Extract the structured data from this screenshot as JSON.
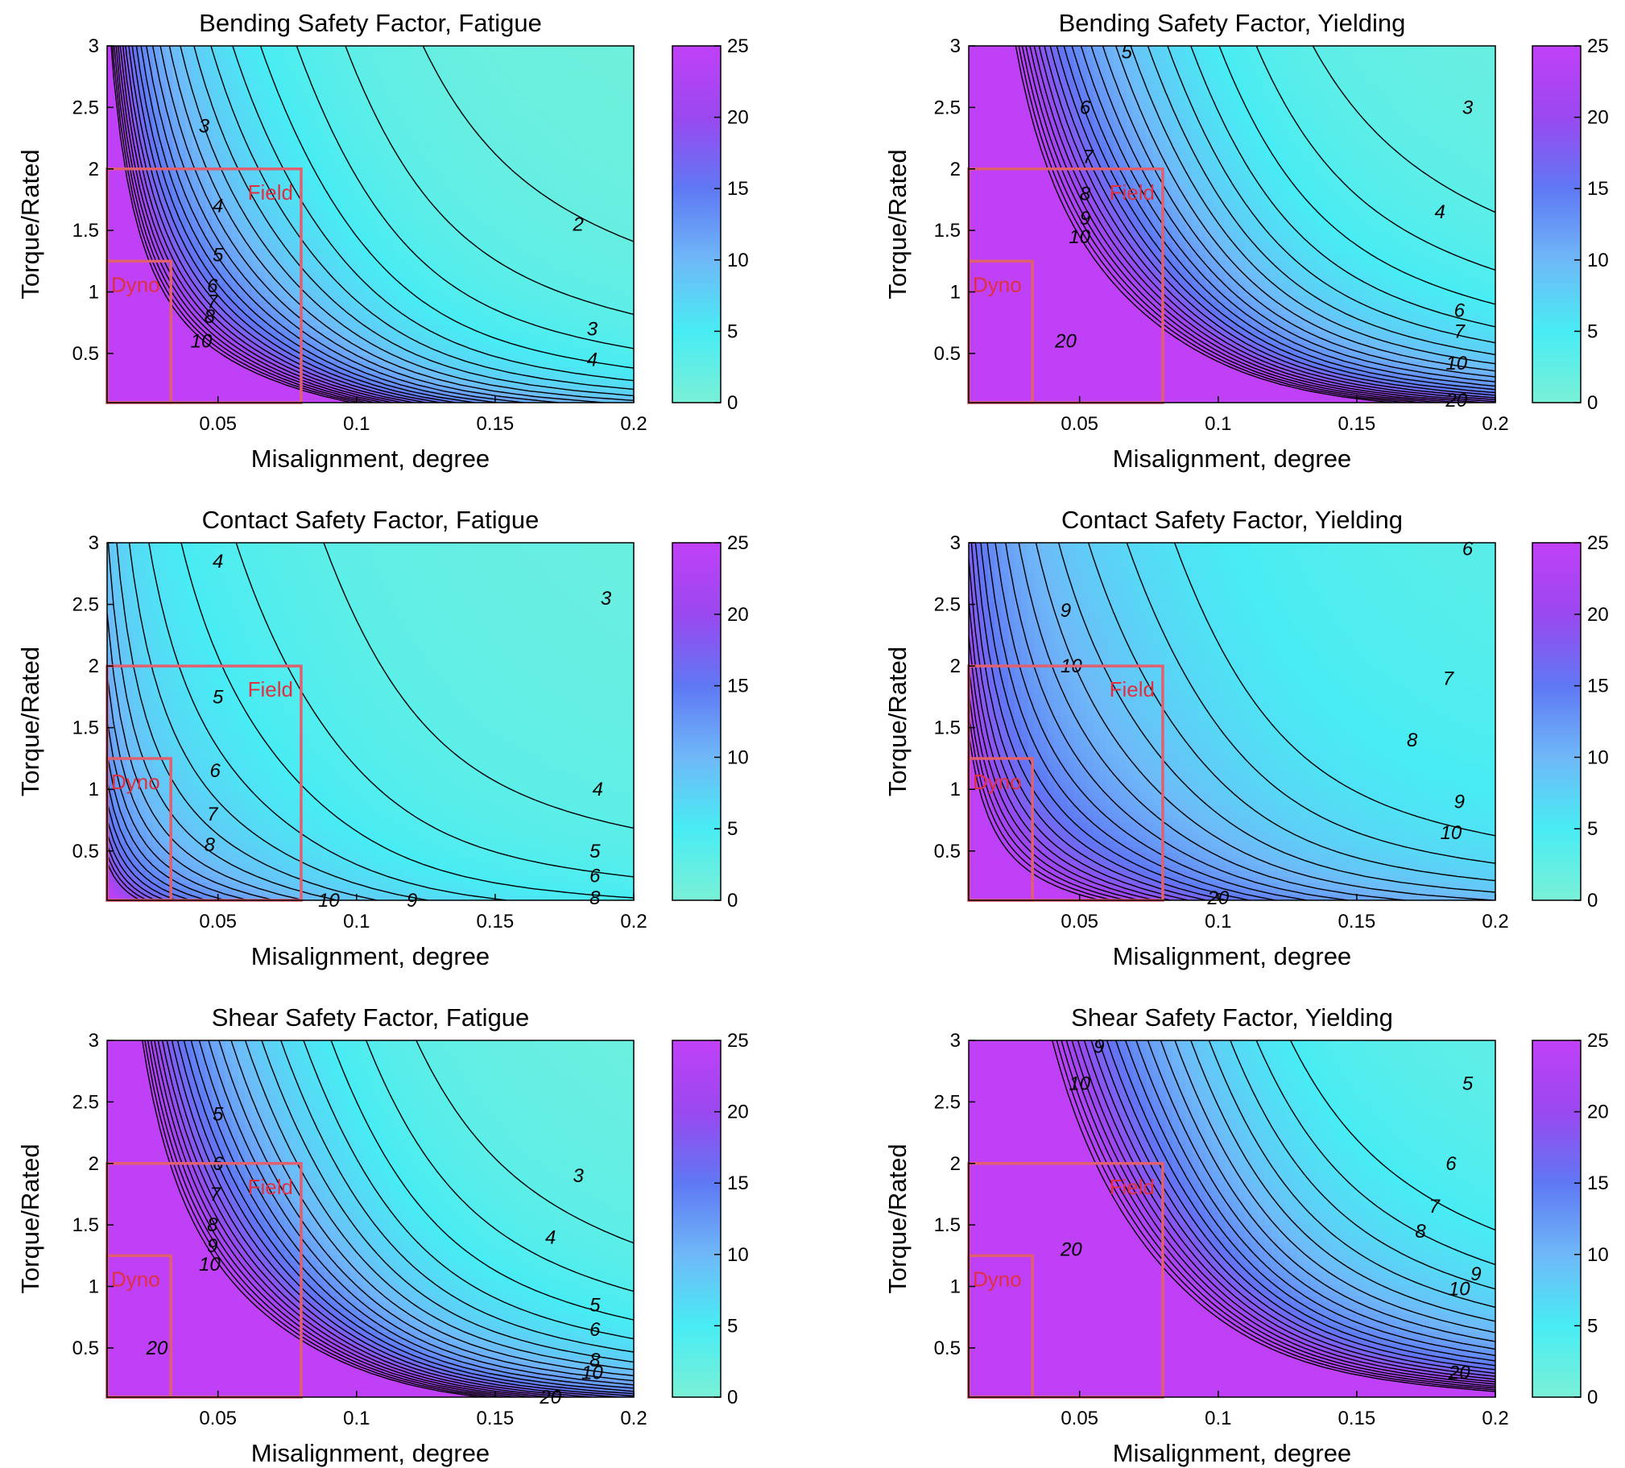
{
  "figure": {
    "colors": {
      "colormap": [
        "#7af0d6",
        "#48ecf4",
        "#6fb8f8",
        "#5f78f4",
        "#9a48f0",
        "#c040f8"
      ],
      "contour_line": "#000000",
      "region_box": "#e06070",
      "region_label": "#e03040",
      "background": "#ffffff"
    }
  },
  "chart_data": [
    {
      "type": "contour",
      "title": "Bending Safety Factor, Fatigue",
      "xlabel": "Misalignment, degree",
      "ylabel": "Torque/Rated",
      "xlim": [
        0.01,
        0.2
      ],
      "ylim": [
        0.1,
        3
      ],
      "xticks": [
        "0.05",
        "0.1",
        "0.15",
        "0.2"
      ],
      "yticks": [
        "0.5",
        "1",
        "1.5",
        "2",
        "2.5",
        "3"
      ],
      "colorbar": {
        "min": 0,
        "max": 25,
        "ticks": [
          "0",
          "5",
          "10",
          "15",
          "20",
          "25"
        ]
      },
      "contour_levels": [
        2,
        3,
        4,
        5,
        6,
        7,
        8,
        9,
        10,
        11,
        12,
        13,
        14,
        15,
        16,
        17,
        18,
        19,
        20,
        21,
        22,
        23,
        24,
        25
      ],
      "contour_labels": [
        {
          "text": "2",
          "x": 0.18,
          "y": 1.55
        },
        {
          "text": "3",
          "x": 0.045,
          "y": 2.35
        },
        {
          "text": "3",
          "x": 0.185,
          "y": 0.7
        },
        {
          "text": "4",
          "x": 0.05,
          "y": 1.7
        },
        {
          "text": "4",
          "x": 0.185,
          "y": 0.45
        },
        {
          "text": "5",
          "x": 0.05,
          "y": 1.3
        },
        {
          "text": "6",
          "x": 0.048,
          "y": 1.05
        },
        {
          "text": "7",
          "x": 0.048,
          "y": 0.92
        },
        {
          "text": "8",
          "x": 0.047,
          "y": 0.8
        },
        {
          "text": "10",
          "x": 0.044,
          "y": 0.6
        }
      ],
      "regions": [
        {
          "label": "Field",
          "x": [
            0.01,
            0.08
          ],
          "y": [
            0.1,
            2.0
          ]
        },
        {
          "label": "Dyno",
          "x": [
            0.01,
            0.033
          ],
          "y": [
            0.1,
            1.25
          ]
        }
      ],
      "model": {
        "base": 2.0,
        "exponent": 0.85
      }
    },
    {
      "type": "contour",
      "title": "Bending Safety Factor, Yielding",
      "xlabel": "Misalignment, degree",
      "ylabel": "Torque/Rated",
      "xlim": [
        0.01,
        0.2
      ],
      "ylim": [
        0.1,
        3
      ],
      "xticks": [
        "0.05",
        "0.1",
        "0.15",
        "0.2"
      ],
      "yticks": [
        "0.5",
        "1",
        "1.5",
        "2",
        "2.5",
        "3"
      ],
      "colorbar": {
        "min": 0,
        "max": 25,
        "ticks": [
          "0",
          "5",
          "10",
          "15",
          "20",
          "25"
        ]
      },
      "contour_levels": [
        3,
        4,
        5,
        6,
        7,
        8,
        9,
        10,
        11,
        12,
        13,
        14,
        15,
        16,
        17,
        18,
        19,
        20,
        21,
        22,
        23,
        24,
        25
      ],
      "contour_labels": [
        {
          "text": "3",
          "x": 0.19,
          "y": 2.5
        },
        {
          "text": "4",
          "x": 0.18,
          "y": 1.65
        },
        {
          "text": "5",
          "x": 0.067,
          "y": 2.95
        },
        {
          "text": "6",
          "x": 0.052,
          "y": 2.5
        },
        {
          "text": "6",
          "x": 0.187,
          "y": 0.85
        },
        {
          "text": "7",
          "x": 0.053,
          "y": 2.1
        },
        {
          "text": "7",
          "x": 0.187,
          "y": 0.68
        },
        {
          "text": "8",
          "x": 0.052,
          "y": 1.8
        },
        {
          "text": "9",
          "x": 0.052,
          "y": 1.6
        },
        {
          "text": "10",
          "x": 0.05,
          "y": 1.45
        },
        {
          "text": "10",
          "x": 0.186,
          "y": 0.42
        },
        {
          "text": "20",
          "x": 0.045,
          "y": 0.6
        },
        {
          "text": "20",
          "x": 0.186,
          "y": 0.12
        }
      ],
      "regions": [
        {
          "label": "Field",
          "x": [
            0.01,
            0.08
          ],
          "y": [
            0.1,
            2.0
          ]
        },
        {
          "label": "Dyno",
          "x": [
            0.01,
            0.033
          ],
          "y": [
            0.1,
            1.25
          ]
        }
      ],
      "model": {
        "base": 3.2,
        "exponent": 0.95
      }
    },
    {
      "type": "contour",
      "title": "Contact Safety Factor, Fatigue",
      "xlabel": "Misalignment, degree",
      "ylabel": "Torque/Rated",
      "xlim": [
        0.01,
        0.2
      ],
      "ylim": [
        0.1,
        3
      ],
      "xticks": [
        "0.05",
        "0.1",
        "0.15",
        "0.2"
      ],
      "yticks": [
        "0.5",
        "1",
        "1.5",
        "2",
        "2.5",
        "3"
      ],
      "colorbar": {
        "min": 0,
        "max": 25,
        "ticks": [
          "0",
          "5",
          "10",
          "15",
          "20",
          "25"
        ]
      },
      "contour_levels": [
        3,
        4,
        5,
        6,
        7,
        8,
        9,
        10,
        11,
        12,
        13,
        14,
        15,
        16,
        17,
        18,
        19,
        20
      ],
      "contour_labels": [
        {
          "text": "3",
          "x": 0.19,
          "y": 2.55
        },
        {
          "text": "4",
          "x": 0.05,
          "y": 2.85
        },
        {
          "text": "4",
          "x": 0.187,
          "y": 1.0
        },
        {
          "text": "5",
          "x": 0.05,
          "y": 1.75
        },
        {
          "text": "5",
          "x": 0.186,
          "y": 0.5
        },
        {
          "text": "6",
          "x": 0.049,
          "y": 1.15
        },
        {
          "text": "6",
          "x": 0.186,
          "y": 0.3
        },
        {
          "text": "7",
          "x": 0.048,
          "y": 0.8
        },
        {
          "text": "8",
          "x": 0.047,
          "y": 0.55
        },
        {
          "text": "8",
          "x": 0.186,
          "y": 0.12
        },
        {
          "text": "9",
          "x": 0.12,
          "y": 0.1
        },
        {
          "text": "10",
          "x": 0.09,
          "y": 0.1
        }
      ],
      "regions": [
        {
          "label": "Field",
          "x": [
            0.01,
            0.08
          ],
          "y": [
            0.1,
            2.0
          ]
        },
        {
          "label": "Dyno",
          "x": [
            0.01,
            0.033
          ],
          "y": [
            0.1,
            1.25
          ]
        }
      ],
      "model": {
        "base": 3.0,
        "exponent": 0.45
      }
    },
    {
      "type": "contour",
      "title": "Contact Safety Factor, Yielding",
      "xlabel": "Misalignment, degree",
      "ylabel": "Torque/Rated",
      "xlim": [
        0.01,
        0.2
      ],
      "ylim": [
        0.1,
        3
      ],
      "xticks": [
        "0.05",
        "0.1",
        "0.15",
        "0.2"
      ],
      "yticks": [
        "0.5",
        "1",
        "1.5",
        "2",
        "2.5",
        "3"
      ],
      "colorbar": {
        "min": 0,
        "max": 25,
        "ticks": [
          "0",
          "5",
          "10",
          "15",
          "20",
          "25"
        ]
      },
      "contour_levels": [
        6,
        7,
        8,
        9,
        10,
        11,
        12,
        13,
        14,
        15,
        16,
        17,
        18,
        19,
        20,
        21,
        22,
        23,
        24
      ],
      "contour_labels": [
        {
          "text": "6",
          "x": 0.19,
          "y": 2.95
        },
        {
          "text": "7",
          "x": 0.183,
          "y": 1.9
        },
        {
          "text": "8",
          "x": 0.17,
          "y": 1.4
        },
        {
          "text": "9",
          "x": 0.045,
          "y": 2.45
        },
        {
          "text": "9",
          "x": 0.187,
          "y": 0.9
        },
        {
          "text": "10",
          "x": 0.047,
          "y": 2.0
        },
        {
          "text": "10",
          "x": 0.184,
          "y": 0.65
        },
        {
          "text": "20",
          "x": 0.1,
          "y": 0.12
        }
      ],
      "regions": [
        {
          "label": "Field",
          "x": [
            0.01,
            0.08
          ],
          "y": [
            0.1,
            2.0
          ]
        },
        {
          "label": "Dyno",
          "x": [
            0.01,
            0.033
          ],
          "y": [
            0.1,
            1.25
          ]
        }
      ],
      "model": {
        "base": 5.8,
        "exponent": 0.45
      }
    },
    {
      "type": "contour",
      "title": "Shear Safety Factor, Fatigue",
      "xlabel": "Misalignment, degree",
      "ylabel": "Torque/Rated",
      "xlim": [
        0.01,
        0.2
      ],
      "ylim": [
        0.1,
        3
      ],
      "xticks": [
        "0.05",
        "0.1",
        "0.15",
        "0.2"
      ],
      "yticks": [
        "0.5",
        "1",
        "1.5",
        "2",
        "2.5",
        "3"
      ],
      "colorbar": {
        "min": 0,
        "max": 25,
        "ticks": [
          "0",
          "5",
          "10",
          "15",
          "20",
          "25"
        ]
      },
      "contour_levels": [
        3,
        4,
        5,
        6,
        7,
        8,
        9,
        10,
        11,
        12,
        13,
        14,
        15,
        16,
        17,
        18,
        19,
        20,
        21,
        22,
        23,
        24,
        25
      ],
      "contour_labels": [
        {
          "text": "3",
          "x": 0.18,
          "y": 1.9
        },
        {
          "text": "4",
          "x": 0.17,
          "y": 1.4
        },
        {
          "text": "5",
          "x": 0.05,
          "y": 2.4
        },
        {
          "text": "5",
          "x": 0.186,
          "y": 0.85
        },
        {
          "text": "6",
          "x": 0.05,
          "y": 2.0
        },
        {
          "text": "6",
          "x": 0.186,
          "y": 0.65
        },
        {
          "text": "7",
          "x": 0.049,
          "y": 1.75
        },
        {
          "text": "8",
          "x": 0.048,
          "y": 1.5
        },
        {
          "text": "8",
          "x": 0.186,
          "y": 0.4
        },
        {
          "text": "9",
          "x": 0.048,
          "y": 1.33
        },
        {
          "text": "10",
          "x": 0.047,
          "y": 1.18
        },
        {
          "text": "10",
          "x": 0.185,
          "y": 0.3
        },
        {
          "text": "20",
          "x": 0.028,
          "y": 0.5
        },
        {
          "text": "20",
          "x": 0.17,
          "y": 0.1
        }
      ],
      "regions": [
        {
          "label": "Field",
          "x": [
            0.01,
            0.08
          ],
          "y": [
            0.1,
            2.0
          ]
        },
        {
          "label": "Dyno",
          "x": [
            0.01,
            0.033
          ],
          "y": [
            0.1,
            1.25
          ]
        }
      ],
      "model": {
        "base": 2.7,
        "exponent": 0.95
      }
    },
    {
      "type": "contour",
      "title": "Shear Safety Factor, Yielding",
      "xlabel": "Misalignment, degree",
      "ylabel": "Torque/Rated",
      "xlim": [
        0.01,
        0.2
      ],
      "ylim": [
        0.1,
        3
      ],
      "xticks": [
        "0.05",
        "0.1",
        "0.15",
        "0.2"
      ],
      "yticks": [
        "0.5",
        "1",
        "1.5",
        "2",
        "2.5",
        "3"
      ],
      "colorbar": {
        "min": 0,
        "max": 25,
        "ticks": [
          "0",
          "5",
          "10",
          "15",
          "20",
          "25"
        ]
      },
      "contour_levels": [
        5,
        6,
        7,
        8,
        9,
        10,
        11,
        12,
        13,
        14,
        15,
        16,
        17,
        18,
        19,
        20,
        21,
        22,
        23,
        24,
        25
      ],
      "contour_labels": [
        {
          "text": "5",
          "x": 0.19,
          "y": 2.65
        },
        {
          "text": "6",
          "x": 0.184,
          "y": 2.0
        },
        {
          "text": "7",
          "x": 0.178,
          "y": 1.65
        },
        {
          "text": "8",
          "x": 0.173,
          "y": 1.45
        },
        {
          "text": "9",
          "x": 0.057,
          "y": 2.95
        },
        {
          "text": "9",
          "x": 0.193,
          "y": 1.1
        },
        {
          "text": "10",
          "x": 0.05,
          "y": 2.65
        },
        {
          "text": "10",
          "x": 0.187,
          "y": 0.98
        },
        {
          "text": "20",
          "x": 0.047,
          "y": 1.3
        },
        {
          "text": "20",
          "x": 0.187,
          "y": 0.3
        }
      ],
      "regions": [
        {
          "label": "Field",
          "x": [
            0.01,
            0.08
          ],
          "y": [
            0.1,
            2.0
          ]
        },
        {
          "label": "Dyno",
          "x": [
            0.01,
            0.033
          ],
          "y": [
            0.1,
            1.25
          ]
        }
      ],
      "model": {
        "base": 4.8,
        "exponent": 0.95
      }
    }
  ]
}
